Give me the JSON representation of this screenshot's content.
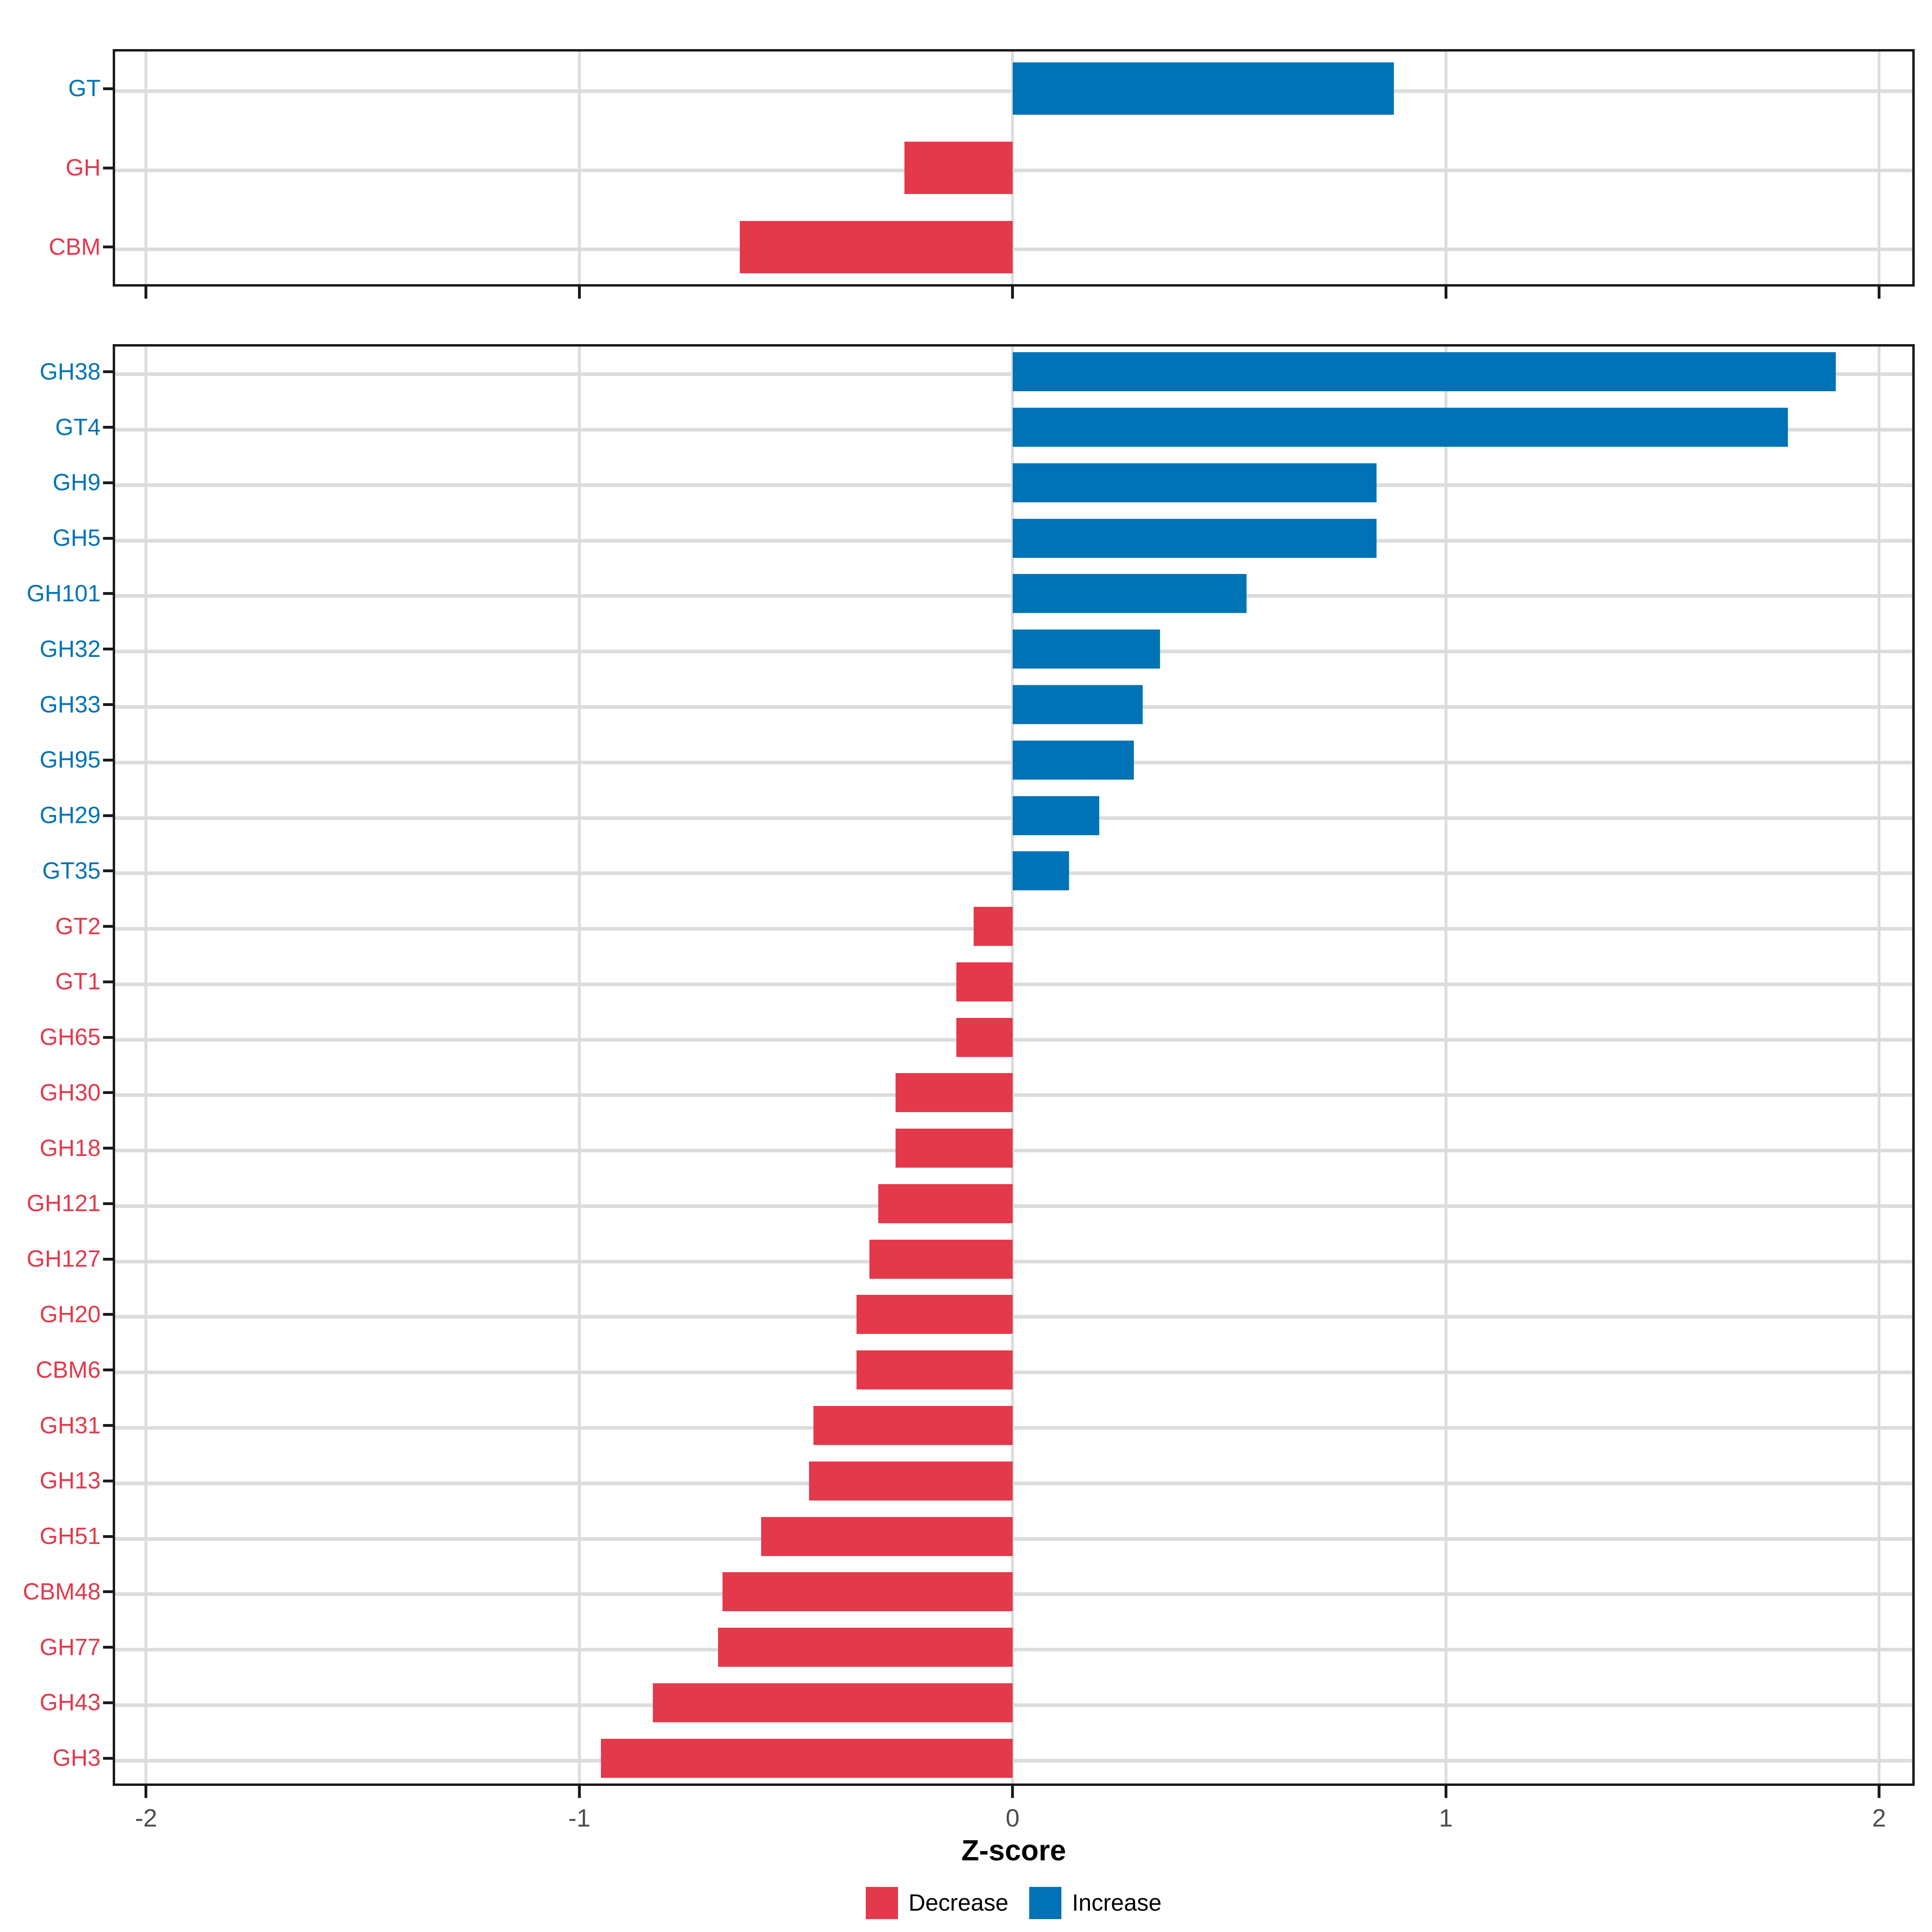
{
  "chart_data": {
    "type": "bar",
    "orientation": "horizontal",
    "title": "",
    "xlabel": "Z-score",
    "ylabel": "",
    "x_ticks": [
      "-2",
      "-1",
      "0",
      "1",
      "2"
    ],
    "x_tick_values": [
      -2,
      -1,
      0,
      1,
      2
    ],
    "xlim": [
      -2.08,
      2.08
    ],
    "grid": "on",
    "legend_position": "bottom",
    "colors": {
      "decrease": "#e4394a",
      "increase": "#0073b6",
      "grid": "#dcdcdc",
      "axis_text": "#4d4d4d",
      "panel_border": "#1a1a1a"
    },
    "legend": [
      {
        "key": "decrease",
        "label": "Decrease",
        "color": "#e4394a"
      },
      {
        "key": "increase",
        "label": "Increase",
        "color": "#0073b6"
      }
    ],
    "panels": [
      {
        "name": "cazyme-class-summary",
        "categories": [
          "GT",
          "GH",
          "CBM"
        ],
        "values": [
          0.88,
          -0.25,
          -0.63
        ]
      },
      {
        "name": "cazyme-family-detail",
        "categories": [
          "GH38",
          "GT4",
          "GH9",
          "GH5",
          "GH101",
          "GH32",
          "GH33",
          "GH95",
          "GH29",
          "GT35",
          "GT2",
          "GT1",
          "GH65",
          "GH30",
          "GH18",
          "GH121",
          "GH127",
          "GH20",
          "CBM6",
          "GH31",
          "GH13",
          "GH51",
          "CBM48",
          "GH77",
          "GH43",
          "GH3"
        ],
        "values": [
          1.9,
          1.79,
          0.84,
          0.84,
          0.54,
          0.34,
          0.3,
          0.28,
          0.2,
          0.13,
          -0.09,
          -0.13,
          -0.13,
          -0.27,
          -0.27,
          -0.31,
          -0.33,
          -0.36,
          -0.36,
          -0.46,
          -0.47,
          -0.58,
          -0.67,
          -0.68,
          -0.83,
          -0.95
        ]
      }
    ]
  }
}
